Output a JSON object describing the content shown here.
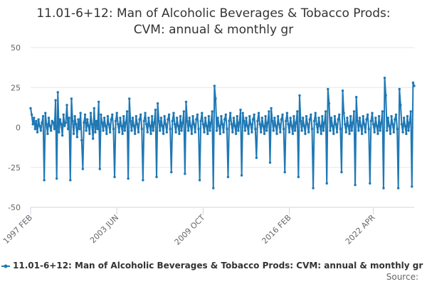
{
  "chart_data": {
    "type": "line",
    "title_lines": [
      "11.01-6+12: Man of Alcoholic Beverages & Tobacco Prods:",
      "CVM: annual & monthly gr"
    ],
    "xlabel": "",
    "ylabel": "",
    "ylim": [
      -50,
      50
    ],
    "yticks": [
      -50,
      -25,
      0,
      25,
      50
    ],
    "x_tick_labels": [
      "1997 FEB",
      "2003 JUN",
      "2009 OCT",
      "2016 FEB",
      "2022 APR"
    ],
    "x_tick_indices": [
      0,
      76,
      152,
      228,
      302
    ],
    "grid": true,
    "legend_position": "bottom",
    "series": [
      {
        "name": "11.01-6+12: Man of Alcoholic Beverages & Tobacco Prods: CVM: annual & monthly gr",
        "color": "#1f78b4",
        "values": [
          12,
          8,
          2,
          6,
          -1,
          4,
          -3,
          5,
          1,
          -2,
          3,
          7,
          -33,
          9,
          2,
          -4,
          6,
          1,
          -2,
          4,
          3,
          -1,
          17,
          -32,
          22,
          -3,
          5,
          2,
          -5,
          8,
          1,
          3,
          14,
          -1,
          6,
          -33,
          18,
          4,
          -4,
          7,
          2,
          -6,
          5,
          -1,
          9,
          -8,
          -26,
          3,
          8,
          -2,
          5,
          1,
          -4,
          9,
          2,
          -7,
          12,
          -3,
          4,
          -1,
          16,
          -26,
          8,
          3,
          -2,
          6,
          1,
          -4,
          7,
          2,
          -3,
          5,
          8,
          -1,
          -31,
          4,
          9,
          2,
          -3,
          6,
          1,
          -4,
          7,
          -2,
          3,
          10,
          -32,
          18,
          4,
          -2,
          6,
          1,
          -4,
          7,
          2,
          -3,
          5,
          8,
          -1,
          -33,
          4,
          9,
          2,
          -3,
          6,
          1,
          -4,
          7,
          -2,
          3,
          11,
          -31,
          15,
          4,
          -2,
          6,
          1,
          -4,
          7,
          2,
          -3,
          5,
          8,
          -1,
          -28,
          4,
          9,
          2,
          -3,
          6,
          1,
          -4,
          7,
          -2,
          3,
          10,
          -29,
          16,
          4,
          -2,
          6,
          1,
          -4,
          7,
          2,
          -3,
          5,
          8,
          -1,
          -33,
          4,
          9,
          2,
          -3,
          6,
          1,
          -4,
          7,
          -2,
          3,
          10,
          -38,
          26,
          18,
          -2,
          6,
          1,
          -4,
          7,
          2,
          -3,
          5,
          8,
          -1,
          -31,
          4,
          9,
          2,
          -3,
          6,
          1,
          -4,
          7,
          -2,
          3,
          11,
          -30,
          9,
          4,
          -2,
          6,
          1,
          -4,
          7,
          2,
          -3,
          5,
          8,
          -1,
          -19,
          4,
          9,
          2,
          -3,
          6,
          1,
          -4,
          7,
          -2,
          3,
          10,
          -22,
          12,
          4,
          -2,
          6,
          1,
          -4,
          7,
          2,
          -3,
          5,
          8,
          -1,
          -28,
          4,
          9,
          2,
          -3,
          6,
          1,
          -4,
          7,
          -2,
          3,
          10,
          -31,
          20,
          4,
          -2,
          6,
          1,
          -4,
          7,
          2,
          -3,
          5,
          8,
          -1,
          -38,
          4,
          9,
          2,
          -3,
          6,
          1,
          -4,
          7,
          -2,
          3,
          10,
          -35,
          24,
          15,
          -2,
          6,
          1,
          -4,
          7,
          2,
          -3,
          5,
          8,
          -1,
          -28,
          23,
          9,
          2,
          -3,
          6,
          1,
          -4,
          7,
          -2,
          3,
          10,
          -36,
          19,
          4,
          -2,
          6,
          1,
          -4,
          7,
          2,
          -3,
          5,
          8,
          -1,
          -35,
          4,
          9,
          2,
          -3,
          6,
          1,
          -4,
          7,
          -2,
          3,
          10,
          -38,
          31,
          20,
          -2,
          6,
          1,
          -4,
          7,
          2,
          -3,
          5,
          8,
          -1,
          -38,
          24,
          14,
          2,
          -3,
          6,
          1,
          -4,
          7,
          -2,
          3,
          10,
          -37,
          28,
          26
        ]
      }
    ],
    "source_label": "Source:"
  }
}
